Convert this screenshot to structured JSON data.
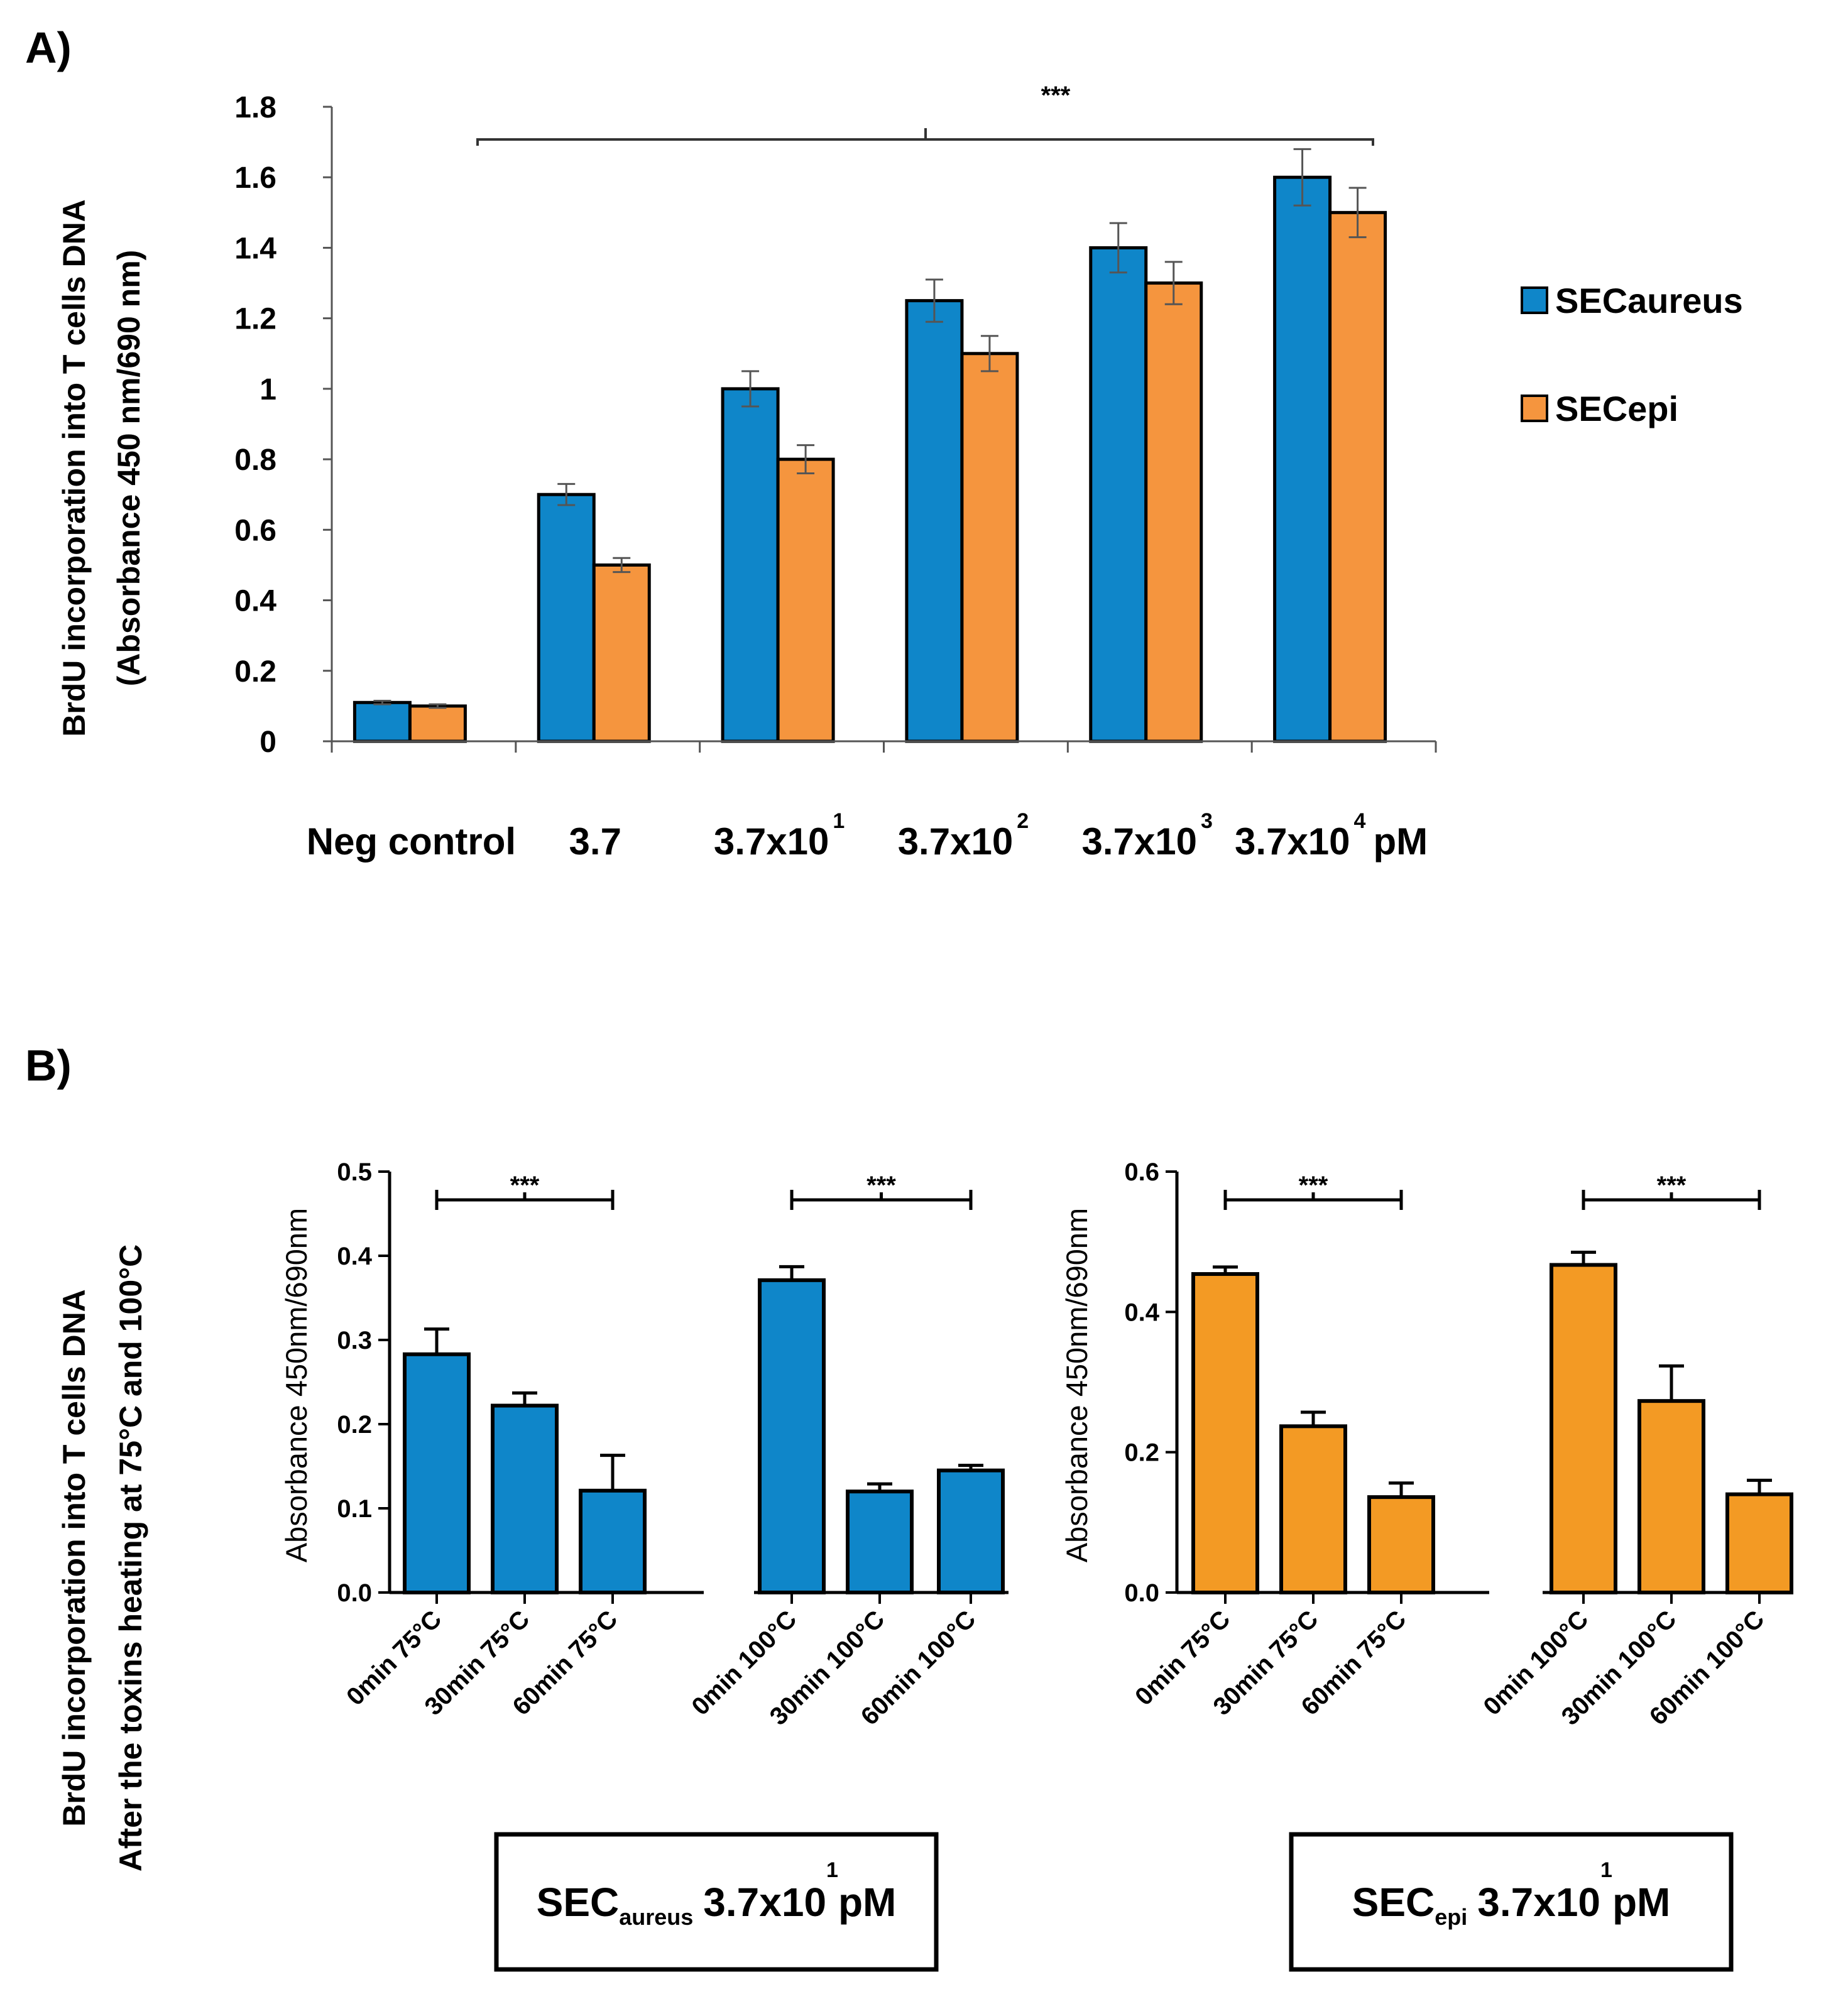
{
  "panel_a_label": "A)",
  "panel_b_label": "B)",
  "chart_data": [
    {
      "type": "bar",
      "panel": "A",
      "ylabel_line1": "BrdU incorporation into T cells DNA",
      "ylabel_line2": "(Absorbance 450 nm/690 nm)",
      "xlabel": "",
      "ylim": [
        0,
        1.8
      ],
      "yticks": [
        0,
        0.2,
        0.4,
        0.6,
        0.8,
        1,
        1.2,
        1.4,
        1.6,
        1.8
      ],
      "ytick_labels": [
        "0",
        "0.2",
        "0.4",
        "0.6",
        "0.8",
        "1",
        "1.2",
        "1.4",
        "1.6",
        "1.8"
      ],
      "categories": [
        {
          "base": "Neg control",
          "sup": ""
        },
        {
          "base": "3.7",
          "sup": ""
        },
        {
          "base": "3.7x10",
          "sup": "1"
        },
        {
          "base": "3.7x10",
          "sup": "2"
        },
        {
          "base": "3.7x10",
          "sup": "3"
        },
        {
          "base": "3.7x10",
          "sup": "4",
          "suffix": "pM"
        }
      ],
      "series": [
        {
          "name": "SECaureus",
          "color": "#0f86c9",
          "values": [
            0.11,
            0.7,
            1.0,
            1.25,
            1.4,
            1.6
          ],
          "errors": [
            0.005,
            0.03,
            0.05,
            0.06,
            0.07,
            0.08
          ]
        },
        {
          "name": "SECepi",
          "color": "#f5953e",
          "values": [
            0.1,
            0.5,
            0.8,
            1.1,
            1.3,
            1.5
          ],
          "errors": [
            0.005,
            0.02,
            0.04,
            0.05,
            0.06,
            0.07
          ]
        }
      ],
      "significance": "***",
      "legend_position": "right"
    },
    {
      "type": "bar",
      "panel": "B-left",
      "ylabel": "Absorbance 450nm/690nm",
      "ylim": [
        0,
        0.5
      ],
      "yticks": [
        0,
        0.1,
        0.2,
        0.3,
        0.4,
        0.5
      ],
      "ytick_labels": [
        "0.0",
        "0.1",
        "0.2",
        "0.3",
        "0.4",
        "0.5"
      ],
      "color": "#0f86c9",
      "categories": [
        "0min 75°C",
        "30min 75°C",
        "60min 75°C",
        "0min 100°C",
        "30min 100°C",
        "60min 100°C"
      ],
      "values": [
        0.283,
        0.222,
        0.121,
        0.371,
        0.12,
        0.145
      ],
      "errors": [
        0.03,
        0.015,
        0.042,
        0.016,
        0.009,
        0.006
      ],
      "significance": [
        "***",
        "***"
      ],
      "caption": {
        "main": "SEC",
        "sub": "aureus",
        "conc": "3.7x10",
        "sup": "1",
        "unit": "pM"
      }
    },
    {
      "type": "bar",
      "panel": "B-right",
      "ylabel": "Absorbance 450nm/690nm",
      "ylim": [
        0,
        0.6
      ],
      "yticks": [
        0,
        0.2,
        0.4,
        0.6
      ],
      "ytick_labels": [
        "0.0",
        "0.2",
        "0.4",
        "0.6"
      ],
      "color": "#f39a24",
      "categories": [
        "0min 75°C",
        "30min 75°C",
        "60min 75°C",
        "0min 100°C",
        "30min 100°C",
        "60min 100°C"
      ],
      "values": [
        0.454,
        0.237,
        0.136,
        0.467,
        0.273,
        0.14
      ],
      "errors": [
        0.01,
        0.02,
        0.02,
        0.018,
        0.05,
        0.02
      ],
      "significance": [
        "***",
        "***"
      ],
      "caption": {
        "main": "SEC",
        "sub": "epi",
        "conc": "3.7x10",
        "sup": "1",
        "unit": "pM"
      }
    }
  ],
  "panel_b_ylabel_line1": "BrdU incorporation into T cells DNA",
  "panel_b_ylabel_line2": "After the toxins heating at 75°C and 100°C"
}
